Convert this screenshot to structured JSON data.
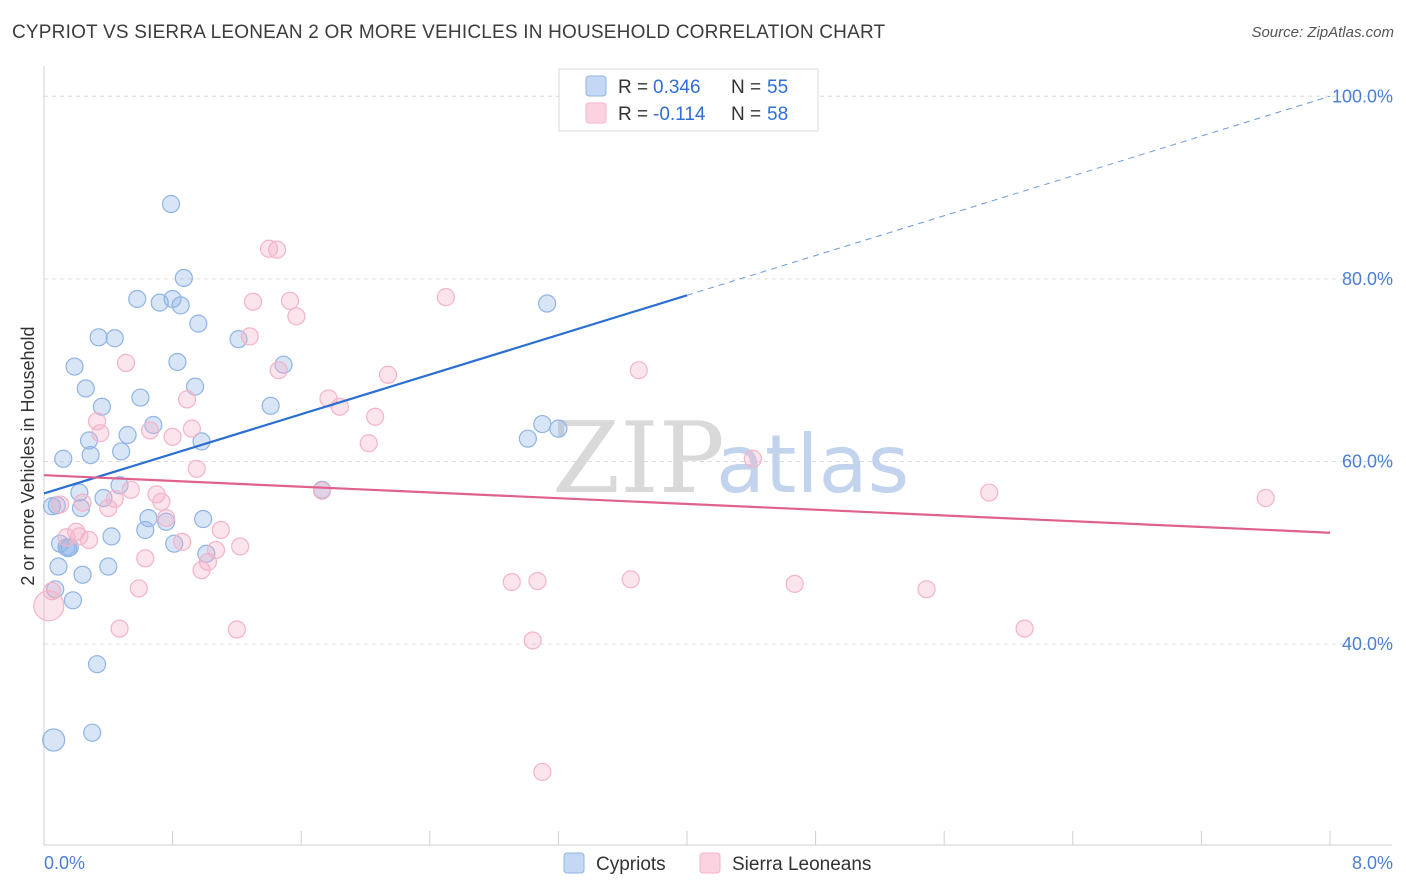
{
  "title": "CYPRIOT VS SIERRA LEONEAN 2 OR MORE VEHICLES IN HOUSEHOLD CORRELATION CHART",
  "source": "Source: ZipAtlas.com",
  "watermark": {
    "zip": "ZIP",
    "atlas": "atlas"
  },
  "chart_data": {
    "type": "scatter",
    "xlabel": "",
    "ylabel": "2 or more Vehicles in Household",
    "xlim": [
      0,
      8
    ],
    "ylim": [
      18,
      102
    ],
    "x_tick_labels": [
      {
        "value": 0,
        "label": "0.0%"
      },
      {
        "value": 8,
        "label": "8.0%"
      }
    ],
    "y_tick_labels": [
      {
        "value": 100,
        "label": "100.0%"
      },
      {
        "value": 80,
        "label": "80.0%"
      },
      {
        "value": 60,
        "label": "60.0%"
      },
      {
        "value": 40,
        "label": "40.0%"
      }
    ],
    "legend": {
      "placement": "top-center",
      "entries": [
        {
          "r_label": "R =",
          "r_value": "0.346",
          "n_label": "N =",
          "n_value": "55"
        },
        {
          "r_label": "R =",
          "r_value": "-0.114",
          "n_label": "N =",
          "n_value": "58"
        }
      ]
    },
    "bottom_legend": [
      "Cypriots",
      "Sierra Leoneans"
    ],
    "series": [
      {
        "name": "Cypriots",
        "color": "#8fb4e6",
        "line_color": "#2a6fd1",
        "trend": {
          "x0": 0.0,
          "y0": 56.5,
          "x1": 4.0,
          "y1": 78.2,
          "dash_to_x": 8.0,
          "dash_to_y": 100.0
        },
        "points": [
          [
            0.05,
            55.1
          ],
          [
            0.06,
            29.5
          ],
          [
            0.07,
            46.0
          ],
          [
            0.08,
            55.2
          ],
          [
            0.09,
            48.5
          ],
          [
            0.1,
            51.0
          ],
          [
            0.12,
            60.3
          ],
          [
            0.14,
            50.6
          ],
          [
            0.15,
            50.5
          ],
          [
            0.16,
            50.6
          ],
          [
            0.18,
            44.8
          ],
          [
            0.19,
            70.4
          ],
          [
            0.22,
            56.6
          ],
          [
            0.23,
            54.9
          ],
          [
            0.24,
            47.6
          ],
          [
            0.26,
            68.0
          ],
          [
            0.28,
            62.3
          ],
          [
            0.29,
            60.7
          ],
          [
            0.3,
            30.3
          ],
          [
            0.33,
            37.8
          ],
          [
            0.34,
            73.6
          ],
          [
            0.36,
            66.0
          ],
          [
            0.37,
            56.0
          ],
          [
            0.4,
            48.5
          ],
          [
            0.42,
            51.8
          ],
          [
            0.44,
            73.5
          ],
          [
            0.47,
            57.4
          ],
          [
            0.48,
            61.1
          ],
          [
            0.52,
            62.9
          ],
          [
            0.58,
            77.8
          ],
          [
            0.6,
            67.0
          ],
          [
            0.63,
            52.5
          ],
          [
            0.65,
            53.8
          ],
          [
            0.68,
            64.0
          ],
          [
            0.72,
            77.4
          ],
          [
            0.76,
            53.4
          ],
          [
            0.79,
            88.2
          ],
          [
            0.8,
            77.8
          ],
          [
            0.81,
            51.0
          ],
          [
            0.83,
            70.9
          ],
          [
            0.85,
            77.1
          ],
          [
            0.87,
            80.1
          ],
          [
            0.94,
            68.2
          ],
          [
            0.96,
            75.1
          ],
          [
            0.98,
            62.2
          ],
          [
            0.99,
            53.7
          ],
          [
            1.01,
            49.9
          ],
          [
            1.21,
            73.4
          ],
          [
            1.41,
            66.1
          ],
          [
            1.49,
            70.6
          ],
          [
            1.73,
            56.9
          ],
          [
            3.01,
            62.5
          ],
          [
            3.1,
            64.1
          ],
          [
            3.13,
            77.3
          ],
          [
            3.2,
            63.6
          ]
        ]
      },
      {
        "name": "Sierra Leoneans",
        "color": "#f4b3c7",
        "line_color": "#e0608e",
        "trend": {
          "x0": 0.0,
          "y0": 58.5,
          "x1": 8.0,
          "y1": 52.2
        },
        "points": [
          [
            0.03,
            44.2
          ],
          [
            0.05,
            45.8
          ],
          [
            0.1,
            55.3
          ],
          [
            0.14,
            51.7
          ],
          [
            0.2,
            52.3
          ],
          [
            0.22,
            51.8
          ],
          [
            0.24,
            55.5
          ],
          [
            0.28,
            51.4
          ],
          [
            0.33,
            64.4
          ],
          [
            0.35,
            63.1
          ],
          [
            0.4,
            54.9
          ],
          [
            0.44,
            55.9
          ],
          [
            0.47,
            41.7
          ],
          [
            0.51,
            70.8
          ],
          [
            0.54,
            56.9
          ],
          [
            0.59,
            46.1
          ],
          [
            0.63,
            49.4
          ],
          [
            0.66,
            63.4
          ],
          [
            0.7,
            56.4
          ],
          [
            0.73,
            55.6
          ],
          [
            0.76,
            53.8
          ],
          [
            0.8,
            62.7
          ],
          [
            0.86,
            51.2
          ],
          [
            0.89,
            66.8
          ],
          [
            0.92,
            63.6
          ],
          [
            0.95,
            59.2
          ],
          [
            0.98,
            48.1
          ],
          [
            1.02,
            49.0
          ],
          [
            1.07,
            50.3
          ],
          [
            1.1,
            52.5
          ],
          [
            1.2,
            41.6
          ],
          [
            1.22,
            50.7
          ],
          [
            1.28,
            73.7
          ],
          [
            1.3,
            77.5
          ],
          [
            1.4,
            83.3
          ],
          [
            1.45,
            83.2
          ],
          [
            1.46,
            70.0
          ],
          [
            1.53,
            77.6
          ],
          [
            1.57,
            75.9
          ],
          [
            1.73,
            56.8
          ],
          [
            1.77,
            66.9
          ],
          [
            1.84,
            66.0
          ],
          [
            2.02,
            62.0
          ],
          [
            2.06,
            64.9
          ],
          [
            2.14,
            69.5
          ],
          [
            2.5,
            78.0
          ],
          [
            2.91,
            46.8
          ],
          [
            3.04,
            40.4
          ],
          [
            3.07,
            46.9
          ],
          [
            3.1,
            26.0
          ],
          [
            3.65,
            47.1
          ],
          [
            3.7,
            70.0
          ],
          [
            4.41,
            60.3
          ],
          [
            4.67,
            46.6
          ],
          [
            5.49,
            46.0
          ],
          [
            5.88,
            56.6
          ],
          [
            6.1,
            41.7
          ],
          [
            7.6,
            56.0
          ]
        ]
      }
    ]
  }
}
